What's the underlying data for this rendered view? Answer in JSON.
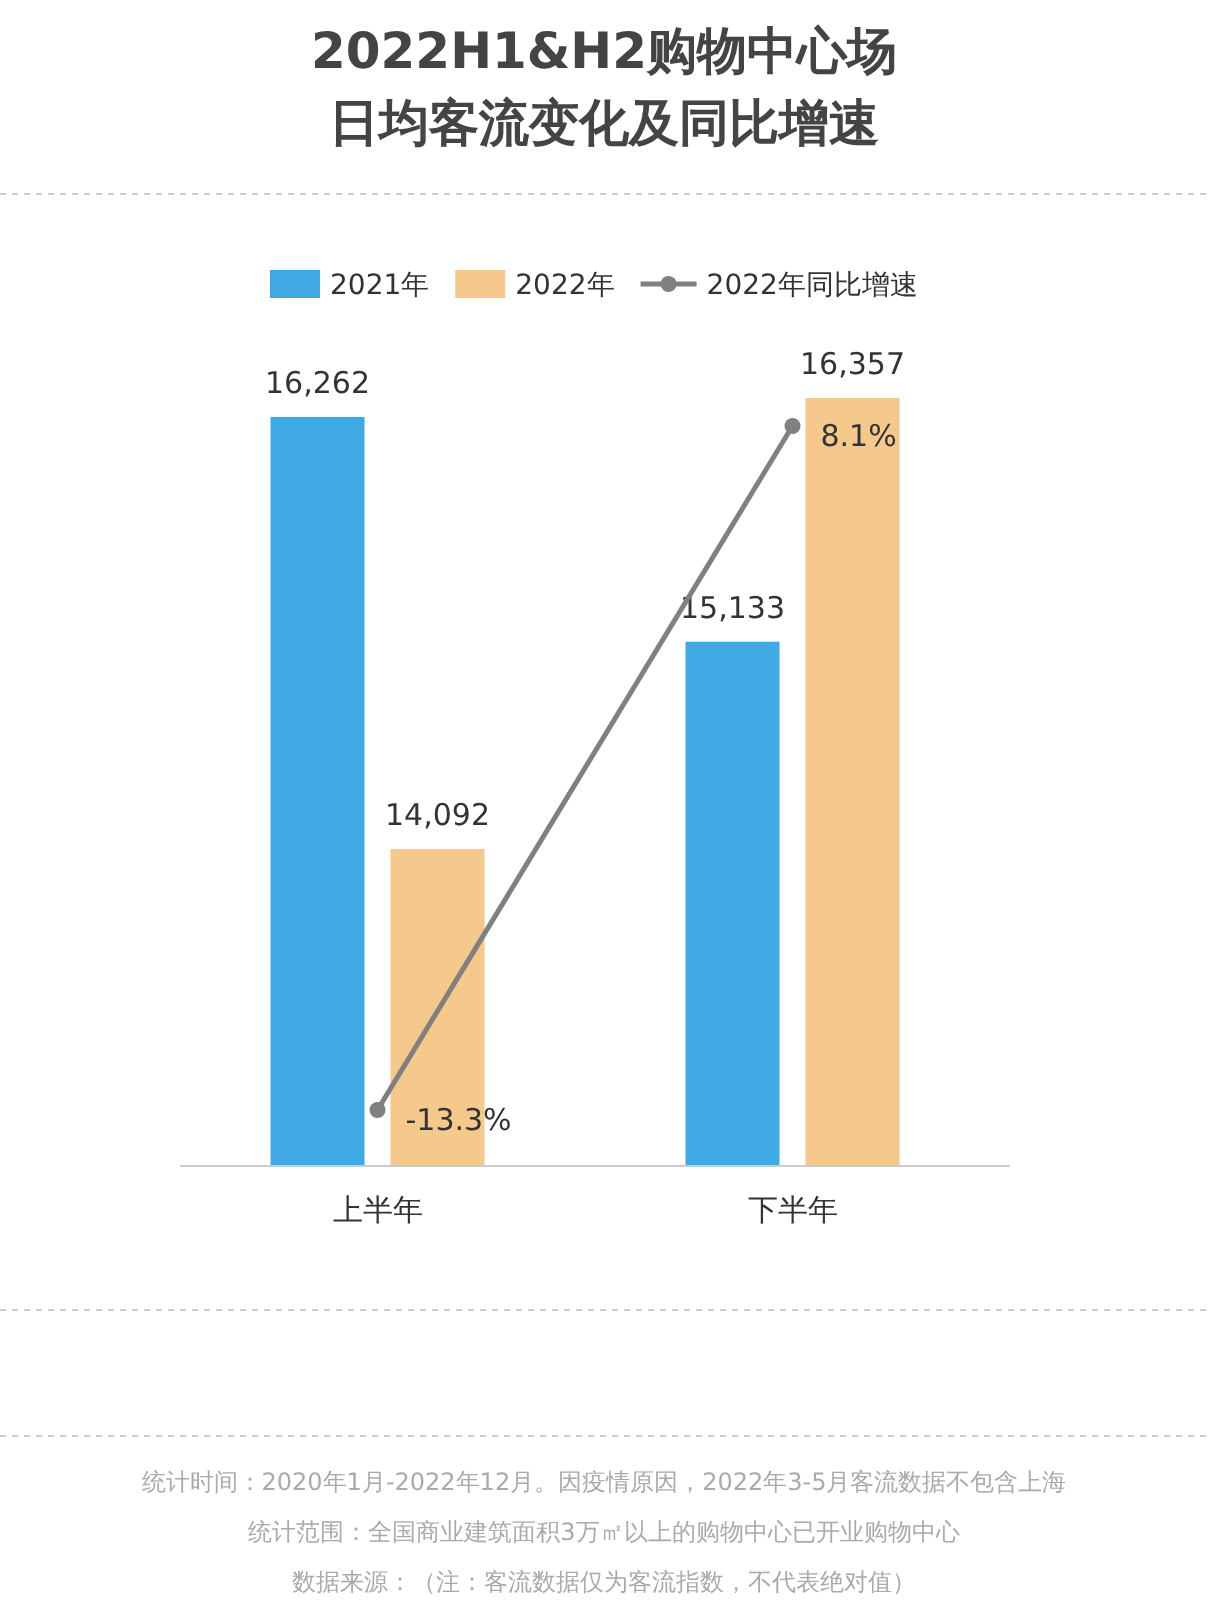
{
  "chart_data": {
    "type": "bar",
    "title": "2022H1&H2购物中心场日均客流变化及同比增速",
    "categories": [
      "上半年",
      "下半年"
    ],
    "series": [
      {
        "name": "2021年",
        "color": "#3fa9e4",
        "values": [
          16262,
          15133
        ],
        "value_labels": [
          "16,262",
          "15,133"
        ]
      },
      {
        "name": "2022年",
        "color": "#f5c88c",
        "values": [
          14092,
          16357
        ],
        "value_labels": [
          "14,092",
          "16,357"
        ]
      },
      {
        "name": "2022年同比增速",
        "type": "line",
        "axis": "y2",
        "marker": "circle",
        "color": "#808080",
        "values": [
          -13.3,
          8.1
        ],
        "value_labels": [
          "-13.3%",
          "8.1%"
        ]
      }
    ],
    "ylim": [
      12500,
      16357
    ],
    "legend": "top",
    "annotations": [
      "统计时间：2020年1月-2022年12月。因疫情原因，2022年3-5月客流数据不包含上海",
      "统计范围：全国商业建筑面积3万㎡以上的购物中心已开业购物中心",
      "数据来源：（注：客流数据仅为客流指数，不代表绝对值）"
    ]
  }
}
